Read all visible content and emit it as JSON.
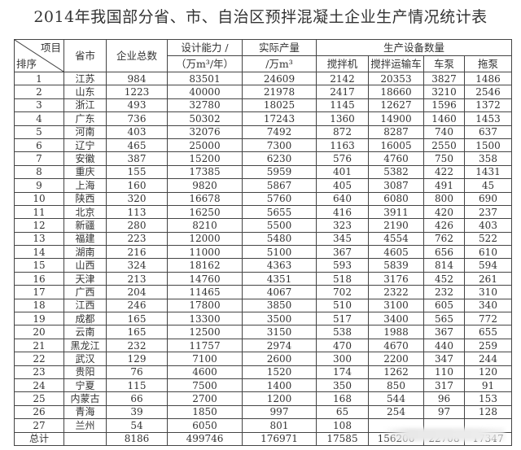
{
  "title": "2014年我国部分省、市、自治区预拌混凝土企业生产情况统计表",
  "headers": {
    "corner_top": "项目",
    "corner_bottom": "排序",
    "province": "省市",
    "companies": "企业总数",
    "capacity_l1": "设计能力 /",
    "capacity_l2": "（万m³/年）",
    "output_l1": "实际产量",
    "output_l2": "/万m³",
    "equipment": "生产设备数量",
    "mixer": "搅拌机",
    "truck": "搅拌运输车",
    "pump_truck": "车泵",
    "trailer_pump": "拖泵"
  },
  "rows": [
    [
      "1",
      "江苏",
      "984",
      "83501",
      "24609",
      "2142",
      "20353",
      "3827",
      "1486"
    ],
    [
      "2",
      "山东",
      "1223",
      "40000",
      "21978",
      "2417",
      "18660",
      "3210",
      "2546"
    ],
    [
      "3",
      "浙江",
      "493",
      "32780",
      "18025",
      "1145",
      "12627",
      "1596",
      "1372"
    ],
    [
      "4",
      "广东",
      "736",
      "50302",
      "17243",
      "1360",
      "14900",
      "1460",
      "1453"
    ],
    [
      "5",
      "河南",
      "403",
      "32076",
      "7492",
      "872",
      "8287",
      "740",
      "637"
    ],
    [
      "6",
      "辽宁",
      "465",
      "25000",
      "7300",
      "1163",
      "16005",
      "2550",
      "1500"
    ],
    [
      "7",
      "安徽",
      "387",
      "15200",
      "6230",
      "576",
      "4760",
      "750",
      "358"
    ],
    [
      "8",
      "重庆",
      "155",
      "17385",
      "5959",
      "401",
      "5382",
      "422",
      "1431"
    ],
    [
      "9",
      "上海",
      "160",
      "9820",
      "5867",
      "405",
      "3087",
      "491",
      "45"
    ],
    [
      "10",
      "陕西",
      "320",
      "16678",
      "5760",
      "640",
      "6080",
      "800",
      "690"
    ],
    [
      "11",
      "北京",
      "113",
      "16250",
      "5655",
      "416",
      "3911",
      "420",
      "237"
    ],
    [
      "12",
      "新疆",
      "280",
      "8210",
      "5500",
      "323",
      "2190",
      "426",
      "403"
    ],
    [
      "13",
      "福建",
      "223",
      "12000",
      "5480",
      "345",
      "4554",
      "762",
      "522"
    ],
    [
      "14",
      "湖南",
      "216",
      "11000",
      "5100",
      "367",
      "4605",
      "656",
      "610"
    ],
    [
      "15",
      "山西",
      "324",
      "18162",
      "4363",
      "593",
      "5839",
      "814",
      "594"
    ],
    [
      "16",
      "天津",
      "213",
      "14760",
      "4351",
      "518",
      "3176",
      "452",
      "261"
    ],
    [
      "17",
      "广西",
      "204",
      "11465",
      "4067",
      "702",
      "2322",
      "232",
      "310"
    ],
    [
      "18",
      "江西",
      "246",
      "17800",
      "3850",
      "510",
      "3100",
      "605",
      "340"
    ],
    [
      "19",
      "成都",
      "165",
      "13300",
      "3500",
      "517",
      "3400",
      "565",
      "772"
    ],
    [
      "20",
      "云南",
      "165",
      "12500",
      "3150",
      "538",
      "1988",
      "367",
      "655"
    ],
    [
      "21",
      "黑龙江",
      "232",
      "11757",
      "2974",
      "470",
      "4670",
      "440",
      "259"
    ],
    [
      "22",
      "武汉",
      "129",
      "7100",
      "2600",
      "300",
      "2200",
      "347",
      "244"
    ],
    [
      "23",
      "贵阳",
      "76",
      "4600",
      "1520",
      "174",
      "1262",
      "110",
      "120"
    ],
    [
      "24",
      "宁夏",
      "115",
      "7500",
      "1400",
      "350",
      "850",
      "317",
      "91"
    ],
    [
      "25",
      "内蒙古",
      "66",
      "2700",
      "1200",
      "168",
      "544",
      "96",
      "153"
    ],
    [
      "26",
      "青海",
      "39",
      "1850",
      "997",
      "65",
      "254",
      "97",
      "128"
    ],
    [
      "27",
      "兰州",
      "54",
      "6050",
      "801",
      "108",
      "",
      "",
      ""
    ]
  ],
  "total": [
    "总计",
    "",
    "8186",
    "499746",
    "176971",
    "17585",
    "156206",
    "22708",
    "17347"
  ]
}
